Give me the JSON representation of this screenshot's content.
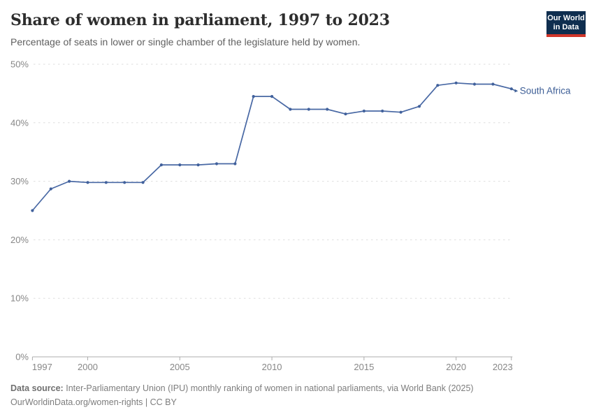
{
  "header": {
    "title": "Share of women in parliament, 1997 to 2023",
    "subtitle": "Percentage of seats in lower or single chamber of the legislature held by women.",
    "logo": {
      "line1": "Our World",
      "line2": "in Data"
    }
  },
  "chart_data": {
    "type": "line",
    "title": "Share of women in parliament, 1997 to 2023",
    "series": [
      {
        "name": "South Africa",
        "x": [
          1997,
          1998,
          1999,
          2000,
          2001,
          2002,
          2003,
          2004,
          2005,
          2006,
          2007,
          2008,
          2009,
          2010,
          2011,
          2012,
          2013,
          2014,
          2015,
          2016,
          2017,
          2018,
          2019,
          2020,
          2021,
          2022,
          2023
        ],
        "values": [
          25.0,
          28.7,
          30.0,
          29.8,
          29.8,
          29.8,
          29.8,
          32.8,
          32.8,
          32.8,
          33.0,
          33.0,
          44.5,
          44.5,
          42.3,
          42.3,
          42.3,
          41.5,
          42.0,
          42.0,
          41.8,
          42.8,
          46.4,
          46.8,
          46.6,
          46.6,
          45.8
        ]
      }
    ],
    "xlabel": "",
    "ylabel": "",
    "xlim": [
      1997,
      2023
    ],
    "ylim": [
      0,
      50
    ],
    "xticks": [
      1997,
      2000,
      2005,
      2010,
      2015,
      2020,
      2023
    ],
    "yticks": [
      0,
      10,
      20,
      30,
      40,
      50
    ],
    "ytick_suffix": "%",
    "grid": "horizontal-dashed",
    "legend_position": "end-of-line-label",
    "colors": {
      "line": "#4868a4",
      "marker": "#41619c",
      "entity_label": "#3d5e96",
      "gridline": "#dedede",
      "axis": "#adadad",
      "tick_label": "#878787"
    }
  },
  "footer": {
    "source_label": "Data source:",
    "source_text": "Inter-Parliamentary Union (IPU) monthly ranking of women in national parliaments, via World Bank (2025)",
    "link": "OurWorldinData.org/women-rights",
    "divider": " | ",
    "license": "CC BY"
  }
}
